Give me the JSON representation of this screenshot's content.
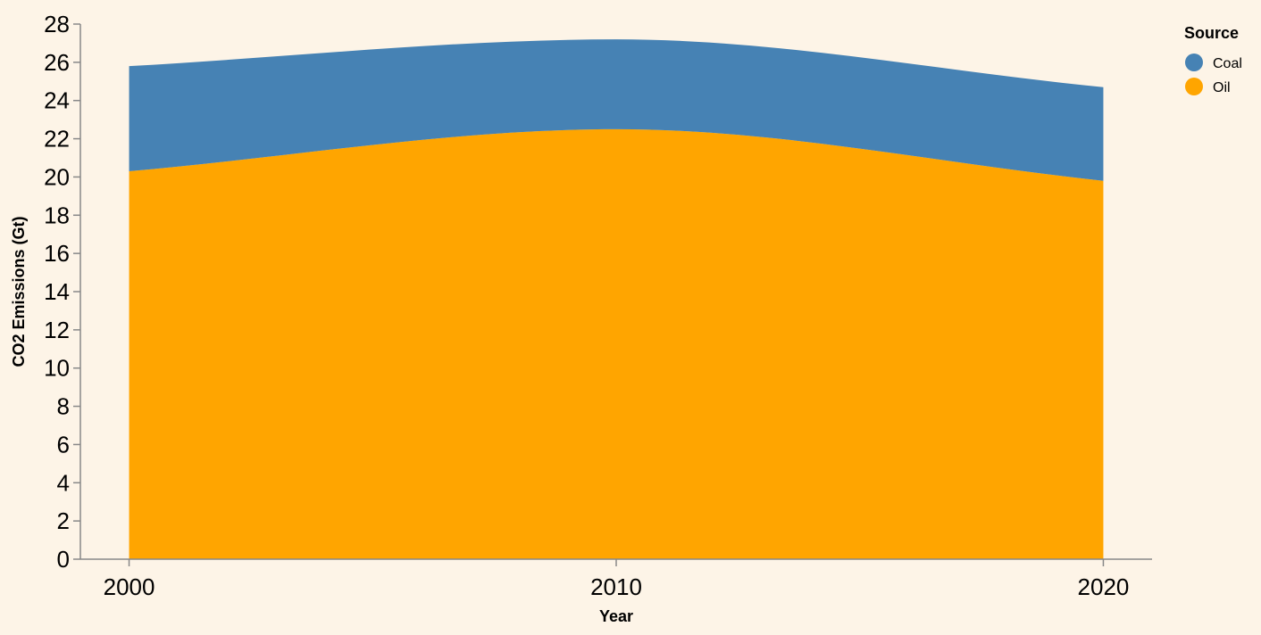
{
  "chart_data": {
    "type": "area",
    "stacked": true,
    "x": [
      2000,
      2010,
      2020
    ],
    "series": [
      {
        "name": "Oil",
        "values": [
          20.3,
          22.5,
          19.8
        ],
        "color": "#ffa500"
      },
      {
        "name": "Coal",
        "values": [
          5.5,
          4.7,
          4.9
        ],
        "color": "#4682b4"
      }
    ],
    "xlabel": "Year",
    "ylabel": "CO2 Emissions (Gt)",
    "xlim": [
      1999,
      2021
    ],
    "ylim": [
      0,
      28
    ],
    "x_ticks": [
      "2000",
      "2010",
      "2020"
    ],
    "y_ticks": [
      "0",
      "2",
      "4",
      "6",
      "8",
      "10",
      "12",
      "14",
      "16",
      "18",
      "20",
      "22",
      "24",
      "26",
      "28"
    ],
    "legend": {
      "title": "Source",
      "placement": "top-right",
      "items": [
        {
          "label": "Coal",
          "color": "#4682b4"
        },
        {
          "label": "Oil",
          "color": "#ffa500"
        }
      ]
    },
    "grid": false
  }
}
